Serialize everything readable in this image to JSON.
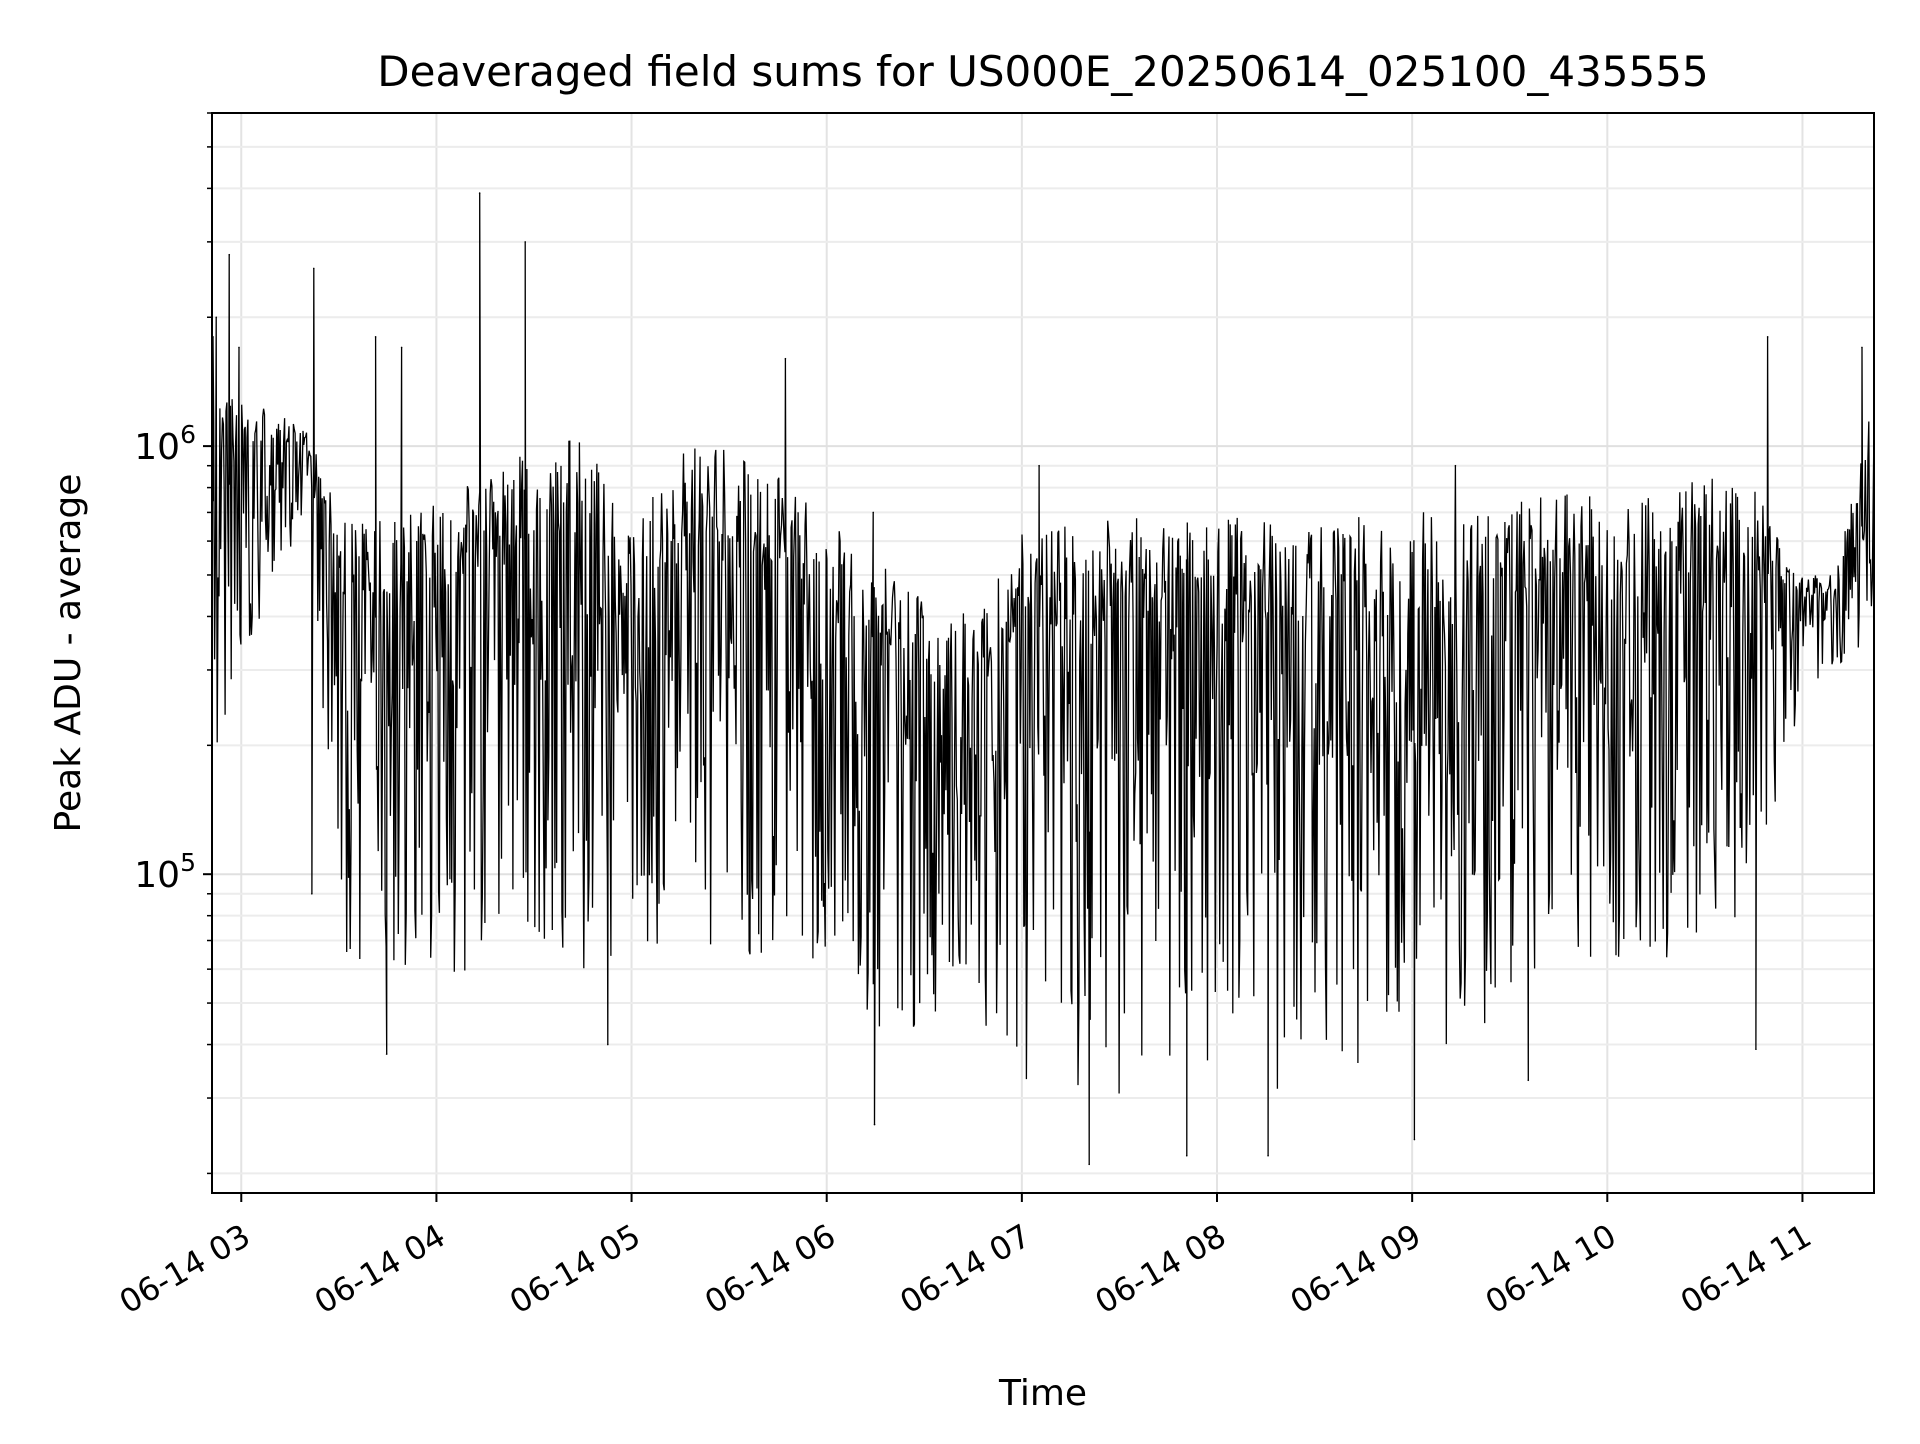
{
  "chart_data": {
    "type": "line",
    "title": "Deaveraged field sums for US000E_20250614_025100_435555",
    "xlabel": "Time",
    "ylabel": "Peak ADU - average",
    "yscale": "log",
    "ylim": [
      18000,
      6000000
    ],
    "xlim": [
      "2025-06-14 02:51",
      "2025-06-14 11:22"
    ],
    "x_ticks": [
      "06-14 03",
      "06-14 04",
      "06-14 05",
      "06-14 06",
      "06-14 07",
      "06-14 08",
      "06-14 09",
      "06-14 10",
      "06-14 11"
    ],
    "y_ticks": [
      {
        "value": 100000,
        "base": "10",
        "exp": "5"
      },
      {
        "value": 1000000,
        "base": "10",
        "exp": "6"
      }
    ],
    "grid": true,
    "line_color": "#000000",
    "series_envelope": {
      "x": [
        "02:51",
        "03:00",
        "03:20",
        "03:30",
        "03:45",
        "04:00",
        "04:15",
        "04:30",
        "04:45",
        "05:00",
        "05:15",
        "05:30",
        "05:45",
        "06:00",
        "06:15",
        "06:30",
        "06:45",
        "07:00",
        "07:15",
        "07:30",
        "07:45",
        "08:00",
        "08:15",
        "08:30",
        "08:45",
        "09:00",
        "09:15",
        "09:30",
        "09:45",
        "10:00",
        "10:15",
        "10:30",
        "10:45",
        "11:00",
        "11:10",
        "11:22"
      ],
      "upper": [
        1300000,
        1300000,
        1100000,
        700000,
        700000,
        750000,
        850000,
        1000000,
        1050000,
        650000,
        1000000,
        1000000,
        850000,
        700000,
        550000,
        450000,
        400000,
        650000,
        680000,
        680000,
        680000,
        680000,
        700000,
        700000,
        700000,
        700000,
        720000,
        740000,
        770000,
        800000,
        780000,
        850000,
        800000,
        500000,
        500000,
        1300000
      ],
      "lower": [
        170000,
        300000,
        700000,
        60000,
        60000,
        55000,
        55000,
        55000,
        55000,
        60000,
        60000,
        60000,
        60000,
        60000,
        40000,
        36000,
        32000,
        30000,
        27000,
        28000,
        27000,
        27000,
        26000,
        28000,
        30000,
        33000,
        40000,
        45000,
        55000,
        60000,
        60000,
        60000,
        80000,
        250000,
        300000,
        350000
      ]
    },
    "spikes": [
      {
        "x": "02:51",
        "y": 1800000
      },
      {
        "x": "02:52",
        "y": 2000000
      },
      {
        "x": "02:56",
        "y": 2800000
      },
      {
        "x": "02:59",
        "y": 1700000
      },
      {
        "x": "03:22",
        "y": 2600000
      },
      {
        "x": "03:41",
        "y": 1800000
      },
      {
        "x": "03:49",
        "y": 1700000
      },
      {
        "x": "04:13",
        "y": 3900000
      },
      {
        "x": "04:27",
        "y": 3000000
      },
      {
        "x": "05:47",
        "y": 1600000
      },
      {
        "x": "06:14",
        "y": 700000
      },
      {
        "x": "07:05",
        "y": 900000
      },
      {
        "x": "09:13",
        "y": 900000
      },
      {
        "x": "10:49",
        "y": 1800000
      },
      {
        "x": "11:18",
        "y": 1700000
      }
    ],
    "dips": [
      {
        "x": "03:21",
        "y": 90000
      },
      {
        "x": "03:44",
        "y": 38000
      },
      {
        "x": "04:52",
        "y": 40000
      },
      {
        "x": "06:14",
        "y": 26000
      },
      {
        "x": "07:20",
        "y": 21000
      },
      {
        "x": "07:50",
        "y": 22000
      },
      {
        "x": "08:15",
        "y": 22000
      },
      {
        "x": "09:00",
        "y": 24000
      },
      {
        "x": "09:35",
        "y": 33000
      },
      {
        "x": "10:45",
        "y": 39000
      }
    ]
  }
}
